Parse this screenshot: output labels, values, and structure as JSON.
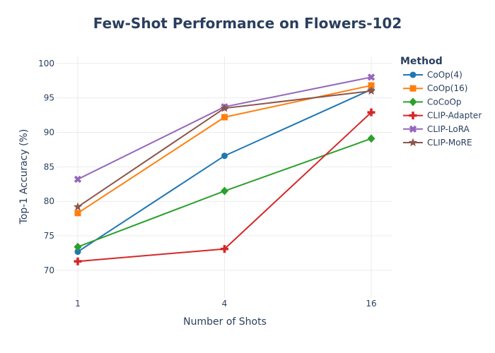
{
  "chart_data": {
    "type": "line",
    "title": "Few-Shot Performance on Flowers-102",
    "xlabel": "Number of Shots",
    "ylabel": "Top-1 Accuracy (%)",
    "x": [
      1,
      4,
      16
    ],
    "x_tick_labels": [
      "1",
      "4",
      "16"
    ],
    "x_scale": "log",
    "ylim": [
      66,
      101
    ],
    "y_ticks": [
      70,
      75,
      80,
      85,
      90,
      95,
      100
    ],
    "grid": true,
    "legend_title": "Method",
    "legend_position": "top-right",
    "series": [
      {
        "name": "CoOp(4)",
        "values": [
          72.7,
          86.6,
          96.2
        ],
        "color": "#1f77b4",
        "marker": "circle"
      },
      {
        "name": "CoOp(16)",
        "values": [
          78.3,
          92.2,
          96.8
        ],
        "color": "#ff7f0e",
        "marker": "square"
      },
      {
        "name": "CoCoOp",
        "values": [
          73.4,
          81.5,
          89.1
        ],
        "color": "#2ca02c",
        "marker": "diamond"
      },
      {
        "name": "CLIP-Adapter",
        "values": [
          71.3,
          73.1,
          92.9
        ],
        "color": "#d62728",
        "marker": "cross"
      },
      {
        "name": "CLIP-LoRA",
        "values": [
          83.2,
          93.7,
          98.0
        ],
        "color": "#9467bd",
        "marker": "x"
      },
      {
        "name": "CLIP-MoRE",
        "values": [
          79.2,
          93.5,
          96.0
        ],
        "color": "#8c564b",
        "marker": "star"
      }
    ]
  }
}
